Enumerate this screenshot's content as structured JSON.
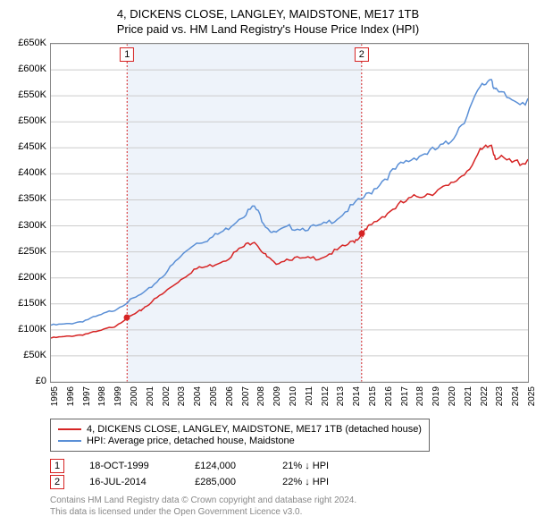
{
  "title": "4, DICKENS CLOSE, LANGLEY, MAIDSTONE, ME17 1TB",
  "subtitle": "Price paid vs. HM Land Registry's House Price Index (HPI)",
  "chart": {
    "type": "line",
    "background_color": "#ffffff",
    "grid_color": "#cccccc",
    "border_color": "#888888",
    "shade_color": "#eef3fa",
    "title_fontsize": 13,
    "label_fontsize": 11,
    "tick_fontsize": 10,
    "y": {
      "min": 0,
      "max": 650000,
      "step": 50000,
      "prefix": "£",
      "suffix": "K",
      "ticks": [
        "£0",
        "£50K",
        "£100K",
        "£150K",
        "£200K",
        "£250K",
        "£300K",
        "£350K",
        "£400K",
        "£450K",
        "£500K",
        "£550K",
        "£600K",
        "£650K"
      ]
    },
    "x": {
      "min": 1995,
      "max": 2025,
      "step": 1,
      "ticks": [
        "1995",
        "1996",
        "1997",
        "1998",
        "1999",
        "2000",
        "2001",
        "2002",
        "2003",
        "2004",
        "2005",
        "2006",
        "2007",
        "2008",
        "2009",
        "2010",
        "2011",
        "2012",
        "2013",
        "2014",
        "2015",
        "2016",
        "2017",
        "2018",
        "2019",
        "2020",
        "2021",
        "2022",
        "2023",
        "2024",
        "2025"
      ]
    },
    "shaded_region": {
      "x_start": 1999.79,
      "x_end": 2014.54
    },
    "series": [
      {
        "id": "price_paid",
        "label": "4, DICKENS CLOSE, LANGLEY, MAIDSTONE, ME17 1TB (detached house)",
        "color": "#d62424",
        "line_width": 1.5,
        "data": [
          [
            1995,
            85000
          ],
          [
            1996,
            88000
          ],
          [
            1997,
            92000
          ],
          [
            1998,
            98000
          ],
          [
            1999,
            108000
          ],
          [
            1999.79,
            124000
          ],
          [
            2000.5,
            135000
          ],
          [
            2001,
            148000
          ],
          [
            2002,
            170000
          ],
          [
            2003,
            195000
          ],
          [
            2004,
            218000
          ],
          [
            2005,
            225000
          ],
          [
            2006,
            238000
          ],
          [
            2007,
            260000
          ],
          [
            2007.8,
            275000
          ],
          [
            2008.5,
            245000
          ],
          [
            2009,
            230000
          ],
          [
            2010,
            240000
          ],
          [
            2011,
            238000
          ],
          [
            2012,
            242000
          ],
          [
            2013,
            255000
          ],
          [
            2014,
            272000
          ],
          [
            2014.54,
            285000
          ],
          [
            2015,
            300000
          ],
          [
            2016,
            325000
          ],
          [
            2017,
            345000
          ],
          [
            2018,
            360000
          ],
          [
            2019,
            368000
          ],
          [
            2020,
            378000
          ],
          [
            2021,
            405000
          ],
          [
            2022,
            445000
          ],
          [
            2022.7,
            460000
          ],
          [
            2023,
            435000
          ],
          [
            2024,
            425000
          ],
          [
            2025,
            428000
          ]
        ]
      },
      {
        "id": "hpi",
        "label": "HPI: Average price, detached house, Maidstone",
        "color": "#5a8fd6",
        "line_width": 1.5,
        "data": [
          [
            1995,
            110000
          ],
          [
            1996,
            112000
          ],
          [
            1997,
            118000
          ],
          [
            1998,
            128000
          ],
          [
            1999,
            140000
          ],
          [
            2000,
            158000
          ],
          [
            2001,
            175000
          ],
          [
            2002,
            205000
          ],
          [
            2003,
            238000
          ],
          [
            2004,
            268000
          ],
          [
            2005,
            278000
          ],
          [
            2006,
            295000
          ],
          [
            2007,
            322000
          ],
          [
            2007.8,
            340000
          ],
          [
            2008.5,
            305000
          ],
          [
            2009,
            288000
          ],
          [
            2010,
            300000
          ],
          [
            2011,
            298000
          ],
          [
            2012,
            302000
          ],
          [
            2013,
            318000
          ],
          [
            2014,
            342000
          ],
          [
            2015,
            365000
          ],
          [
            2016,
            395000
          ],
          [
            2017,
            420000
          ],
          [
            2018,
            438000
          ],
          [
            2019,
            448000
          ],
          [
            2020,
            462000
          ],
          [
            2021,
            510000
          ],
          [
            2022,
            568000
          ],
          [
            2022.7,
            592000
          ],
          [
            2023,
            560000
          ],
          [
            2024,
            548000
          ],
          [
            2025,
            545000
          ]
        ]
      }
    ],
    "sale_markers": [
      {
        "n": "1",
        "x": 1999.79,
        "y": 124000,
        "color": "#d62424"
      },
      {
        "n": "2",
        "x": 2014.54,
        "y": 285000,
        "color": "#d62424"
      }
    ]
  },
  "legend": {
    "items": [
      {
        "color": "#d62424",
        "label": "4, DICKENS CLOSE, LANGLEY, MAIDSTONE, ME17 1TB (detached house)"
      },
      {
        "color": "#5a8fd6",
        "label": "HPI: Average price, detached house, Maidstone"
      }
    ]
  },
  "sales": [
    {
      "n": "1",
      "color": "#d62424",
      "date": "18-OCT-1999",
      "price": "£124,000",
      "delta": "21% ↓ HPI"
    },
    {
      "n": "2",
      "color": "#d62424",
      "date": "16-JUL-2014",
      "price": "£285,000",
      "delta": "22% ↓ HPI"
    }
  ],
  "attribution": {
    "line1": "Contains HM Land Registry data © Crown copyright and database right 2024.",
    "line2": "This data is licensed under the Open Government Licence v3.0."
  }
}
